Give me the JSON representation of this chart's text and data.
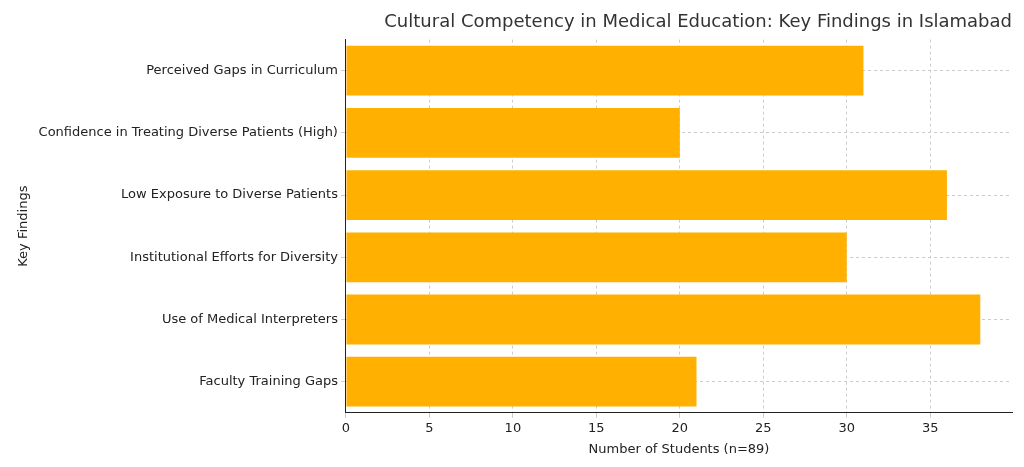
{
  "chart_data": {
    "type": "bar",
    "orientation": "horizontal",
    "title": "Cultural Competency in Medical Education: Key Findings in Islamabad",
    "xlabel": "Number of Students (n=89)",
    "ylabel": "Key Findings",
    "categories": [
      "Perceived Gaps in Curriculum",
      "Confidence in Treating Diverse Patients (High)",
      "Low Exposure to Diverse Patients",
      "Institutional Efforts for Diversity",
      "Use of Medical Interpreters",
      "Faculty Training Gaps"
    ],
    "values": [
      31,
      20,
      36,
      30,
      38,
      21
    ],
    "color": "#ffb000",
    "xlim": [
      0,
      39.9
    ],
    "xticks": [
      0,
      5,
      10,
      15,
      20,
      25,
      30,
      35
    ],
    "grid": true
  }
}
